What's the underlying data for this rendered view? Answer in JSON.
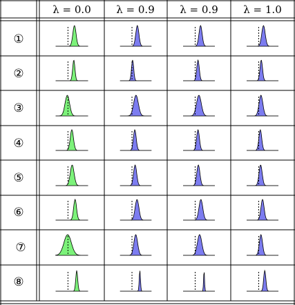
{
  "table": {
    "columns": [
      "λ = 0.0",
      "λ = 0.9",
      "λ = 0.9",
      "λ = 1.0"
    ],
    "rows": [
      {
        "label": "①",
        "cells": [
          {
            "color": "green",
            "pos": 0.58,
            "sigma": 0.05,
            "skew": 0.0
          },
          {
            "color": "blue",
            "pos": 0.55,
            "sigma": 0.05,
            "skew": 0.0
          },
          {
            "color": "blue",
            "pos": 0.55,
            "sigma": 0.05,
            "skew": 0.0
          },
          {
            "color": "blue",
            "pos": 0.53,
            "sigma": 0.055,
            "skew": 0.0
          }
        ]
      },
      {
        "label": "②",
        "cells": [
          {
            "color": "green",
            "pos": 0.56,
            "sigma": 0.035,
            "skew": 0.0
          },
          {
            "color": "blue",
            "pos": 0.4,
            "sigma": 0.035,
            "skew": 0.0
          },
          {
            "color": "blue",
            "pos": 0.47,
            "sigma": 0.04,
            "skew": 0.0
          },
          {
            "color": "blue",
            "pos": 0.46,
            "sigma": 0.04,
            "skew": 0.0
          }
        ]
      },
      {
        "label": "③",
        "cells": [
          {
            "color": "green",
            "pos": 0.36,
            "sigma": 0.07,
            "skew": 0.0
          },
          {
            "color": "blue",
            "pos": 0.51,
            "sigma": 0.075,
            "skew": -0.1
          },
          {
            "color": "blue",
            "pos": 0.5,
            "sigma": 0.075,
            "skew": -0.1
          },
          {
            "color": "blue",
            "pos": 0.45,
            "sigma": 0.06,
            "skew": 0.0
          }
        ]
      },
      {
        "label": "④",
        "cells": [
          {
            "color": "green",
            "pos": 0.5,
            "sigma": 0.05,
            "skew": 0.0
          },
          {
            "color": "blue",
            "pos": 0.47,
            "sigma": 0.045,
            "skew": 0.0
          },
          {
            "color": "blue",
            "pos": 0.47,
            "sigma": 0.045,
            "skew": 0.0
          },
          {
            "color": "blue",
            "pos": 0.43,
            "sigma": 0.045,
            "skew": 0.0
          }
        ]
      },
      {
        "label": "⑤",
        "cells": [
          {
            "color": "green",
            "pos": 0.51,
            "sigma": 0.06,
            "skew": 0.0
          },
          {
            "color": "blue",
            "pos": 0.48,
            "sigma": 0.05,
            "skew": 0.0
          },
          {
            "color": "blue",
            "pos": 0.48,
            "sigma": 0.05,
            "skew": 0.0
          },
          {
            "color": "blue",
            "pos": 0.44,
            "sigma": 0.05,
            "skew": 0.0
          }
        ]
      },
      {
        "label": "⑥",
        "cells": [
          {
            "color": "green",
            "pos": 0.6,
            "sigma": 0.045,
            "skew": 0.0
          },
          {
            "color": "blue",
            "pos": 0.54,
            "sigma": 0.06,
            "skew": 0.0
          },
          {
            "color": "blue",
            "pos": 0.56,
            "sigma": 0.06,
            "skew": 0.0
          },
          {
            "color": "blue",
            "pos": 0.5,
            "sigma": 0.05,
            "skew": 0.0
          }
        ]
      },
      {
        "label": "⑦",
        "cells": [
          {
            "color": "green",
            "pos": 0.37,
            "sigma": 0.115,
            "skew": 0.0
          },
          {
            "color": "blue",
            "pos": 0.5,
            "sigma": 0.06,
            "skew": 0.0
          },
          {
            "color": "blue",
            "pos": 0.52,
            "sigma": 0.07,
            "skew": 0.0
          },
          {
            "color": "blue",
            "pos": 0.45,
            "sigma": 0.05,
            "skew": 0.0
          }
        ]
      },
      {
        "label": "⑧",
        "cells": [
          {
            "color": "green",
            "pos": 0.65,
            "sigma": 0.03,
            "skew": 0.0
          },
          {
            "color": "blue",
            "pos": 0.63,
            "sigma": 0.02,
            "skew": 0.0
          },
          {
            "color": "blue",
            "pos": 0.66,
            "sigma": 0.015,
            "skew": 0.0
          },
          {
            "color": "blue",
            "pos": 0.57,
            "sigma": 0.035,
            "skew": 0.0
          }
        ]
      }
    ]
  },
  "colors": {
    "green_fill": "#7CF27A",
    "blue_fill": "#7C7CF0",
    "line": "#000000",
    "baseline": "#888888"
  }
}
